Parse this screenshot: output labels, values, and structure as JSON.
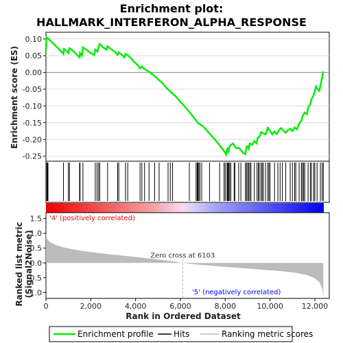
{
  "chart_data": {
    "type": "line",
    "title_line1": "Enrichment plot:",
    "title_line2": "HALLMARK_INTERFERON_ALPHA_RESPONSE",
    "es_panel": {
      "ylabel": "Enrichment score (ES)",
      "ylim": [
        -0.265,
        0.12
      ],
      "yticks": [
        0.1,
        0.05,
        0.0,
        -0.05,
        -0.1,
        -0.15,
        -0.2,
        -0.25
      ],
      "ytick_labels": [
        "0.10",
        "0.05",
        "0.00",
        "-0.05",
        "-0.10",
        "-0.15",
        "-0.20",
        "-0.25"
      ],
      "line_color": "#00ee00",
      "profile": [
        [
          0,
          0.065
        ],
        [
          20,
          0.105
        ],
        [
          150,
          0.098
        ],
        [
          400,
          0.082
        ],
        [
          600,
          0.068
        ],
        [
          780,
          0.055
        ],
        [
          800,
          0.07
        ],
        [
          900,
          0.065
        ],
        [
          1000,
          0.058
        ],
        [
          1050,
          0.072
        ],
        [
          1200,
          0.065
        ],
        [
          1400,
          0.052
        ],
        [
          1500,
          0.045
        ],
        [
          1520,
          0.058
        ],
        [
          1600,
          0.05
        ],
        [
          1650,
          0.075
        ],
        [
          1800,
          0.068
        ],
        [
          2000,
          0.058
        ],
        [
          2150,
          0.052
        ],
        [
          2200,
          0.068
        ],
        [
          2300,
          0.062
        ],
        [
          2350,
          0.078
        ],
        [
          2400,
          0.085
        ],
        [
          2550,
          0.075
        ],
        [
          2700,
          0.068
        ],
        [
          2750,
          0.078
        ],
        [
          2900,
          0.07
        ],
        [
          3100,
          0.06
        ],
        [
          3200,
          0.052
        ],
        [
          3250,
          0.06
        ],
        [
          3400,
          0.052
        ],
        [
          3500,
          0.045
        ],
        [
          3550,
          0.055
        ],
        [
          3650,
          0.052
        ],
        [
          3800,
          0.042
        ],
        [
          3950,
          0.03
        ],
        [
          4100,
          0.022
        ],
        [
          4200,
          0.012
        ],
        [
          4280,
          0.018
        ],
        [
          4350,
          0.012
        ],
        [
          4600,
          0.002
        ],
        [
          4800,
          -0.008
        ],
        [
          5000,
          -0.02
        ],
        [
          5200,
          -0.032
        ],
        [
          5400,
          -0.048
        ],
        [
          5600,
          -0.06
        ],
        [
          5800,
          -0.072
        ],
        [
          6000,
          -0.088
        ],
        [
          6200,
          -0.102
        ],
        [
          6400,
          -0.118
        ],
        [
          6600,
          -0.135
        ],
        [
          6800,
          -0.152
        ],
        [
          7000,
          -0.16
        ],
        [
          7200,
          -0.175
        ],
        [
          7400,
          -0.19
        ],
        [
          7600,
          -0.205
        ],
        [
          7800,
          -0.222
        ],
        [
          7950,
          -0.235
        ],
        [
          8050,
          -0.245
        ],
        [
          8100,
          -0.225
        ],
        [
          8150,
          -0.235
        ],
        [
          8200,
          -0.22
        ],
        [
          8280,
          -0.215
        ],
        [
          8350,
          -0.212
        ],
        [
          8420,
          -0.22
        ],
        [
          8500,
          -0.226
        ],
        [
          8600,
          -0.225
        ],
        [
          8700,
          -0.232
        ],
        [
          8800,
          -0.24
        ],
        [
          8900,
          -0.244
        ],
        [
          8950,
          -0.222
        ],
        [
          9000,
          -0.22
        ],
        [
          9050,
          -0.228
        ],
        [
          9100,
          -0.212
        ],
        [
          9200,
          -0.216
        ],
        [
          9300,
          -0.205
        ],
        [
          9400,
          -0.212
        ],
        [
          9450,
          -0.195
        ],
        [
          9550,
          -0.19
        ],
        [
          9600,
          -0.178
        ],
        [
          9700,
          -0.182
        ],
        [
          9800,
          -0.185
        ],
        [
          9900,
          -0.165
        ],
        [
          10000,
          -0.175
        ],
        [
          10100,
          -0.185
        ],
        [
          10200,
          -0.176
        ],
        [
          10300,
          -0.184
        ],
        [
          10400,
          -0.172
        ],
        [
          10500,
          -0.166
        ],
        [
          10600,
          -0.174
        ],
        [
          10700,
          -0.18
        ],
        [
          10800,
          -0.172
        ],
        [
          10900,
          -0.168
        ],
        [
          11000,
          -0.175
        ],
        [
          11100,
          -0.164
        ],
        [
          11200,
          -0.17
        ],
        [
          11300,
          -0.152
        ],
        [
          11400,
          -0.145
        ],
        [
          11450,
          -0.13
        ],
        [
          11550,
          -0.12
        ],
        [
          11650,
          -0.125
        ],
        [
          11700,
          -0.105
        ],
        [
          11800,
          -0.095
        ],
        [
          11850,
          -0.08
        ],
        [
          11950,
          -0.068
        ],
        [
          12000,
          -0.055
        ],
        [
          12050,
          -0.042
        ],
        [
          12100,
          -0.048
        ],
        [
          12200,
          -0.055
        ],
        [
          12280,
          -0.03
        ],
        [
          12330,
          -0.015
        ],
        [
          12360,
          0.0
        ],
        [
          12380,
          0.003
        ]
      ],
      "hits": [
        40,
        60,
        75,
        90,
        780,
        1000,
        1050,
        1500,
        1520,
        1650,
        2200,
        2280,
        2350,
        2400,
        2750,
        3200,
        3250,
        3550,
        3650,
        4200,
        4280,
        4400,
        4600,
        4850,
        5050,
        5450,
        5550,
        5650,
        6400,
        6700,
        6750,
        6780,
        6820,
        6870,
        6950,
        7300,
        7750,
        7950,
        8000,
        8080,
        8100,
        8120,
        8160,
        8200,
        8250,
        8400,
        8430,
        8600,
        8700,
        8900,
        8950,
        9000,
        9050,
        9100,
        9150,
        9300,
        9420,
        9480,
        9520,
        9600,
        9650,
        9700,
        9800,
        9900,
        9950,
        10000,
        10200,
        10350,
        10450,
        10550,
        10700,
        10900,
        11000,
        11100,
        11150,
        11300,
        11400,
        11450,
        11500,
        11550,
        11700,
        11800,
        11850,
        11950,
        12000,
        12100,
        12250,
        12330,
        12380
      ]
    },
    "legend": {
      "entries": [
        "Enrichment profile",
        "Hits",
        "Ranking metric scores"
      ],
      "colors": [
        "#00ee00",
        "#000000",
        "#bbbbbb"
      ]
    },
    "rank_panel": {
      "ylabel_line1": "Ranked list metric",
      "ylabel_line2": "(Signal2Noise)",
      "xlabel": "Rank in Ordered Dataset",
      "ylim": [
        -1.2,
        1.7
      ],
      "yticks": [
        1.5,
        1.0,
        0.5,
        0.0,
        -0.5,
        -1.0
      ],
      "ytick_labels": [
        "1.5",
        "1.0",
        "0.5",
        "0.0",
        "-0.5",
        "-1.0"
      ],
      "xlim": [
        0,
        12400
      ],
      "xticks": [
        0,
        2000,
        4000,
        6000,
        8000,
        10000,
        12000
      ],
      "xtick_labels": [
        "0",
        "2,000",
        "4,000",
        "6,000",
        "8,000",
        "10,000",
        "12,000"
      ],
      "fill_color": "#bbbbbb",
      "metric_curve": [
        [
          0,
          0.98
        ],
        [
          50,
          0.82
        ],
        [
          150,
          0.72
        ],
        [
          400,
          0.62
        ],
        [
          800,
          0.52
        ],
        [
          1500,
          0.42
        ],
        [
          2500,
          0.32
        ],
        [
          3500,
          0.24
        ],
        [
          4500,
          0.16
        ],
        [
          5200,
          0.1
        ],
        [
          5800,
          0.04
        ],
        [
          6103,
          0.0
        ],
        [
          6500,
          -0.04
        ],
        [
          7500,
          -0.1
        ],
        [
          8500,
          -0.16
        ],
        [
          9500,
          -0.22
        ],
        [
          10500,
          -0.28
        ],
        [
          11200,
          -0.34
        ],
        [
          11700,
          -0.42
        ],
        [
          12000,
          -0.52
        ],
        [
          12200,
          -0.65
        ],
        [
          12300,
          -0.8
        ],
        [
          12350,
          -0.95
        ],
        [
          12380,
          -1.15
        ]
      ],
      "zero_cross_label": "Zero cross at 6103",
      "zero_cross_rank": 6103,
      "pos_label": "'4' (positively correlated)",
      "neg_label": "'5' (negatively correlated)",
      "pos_color": "#ee0000",
      "neg_color": "#0000ee"
    }
  }
}
